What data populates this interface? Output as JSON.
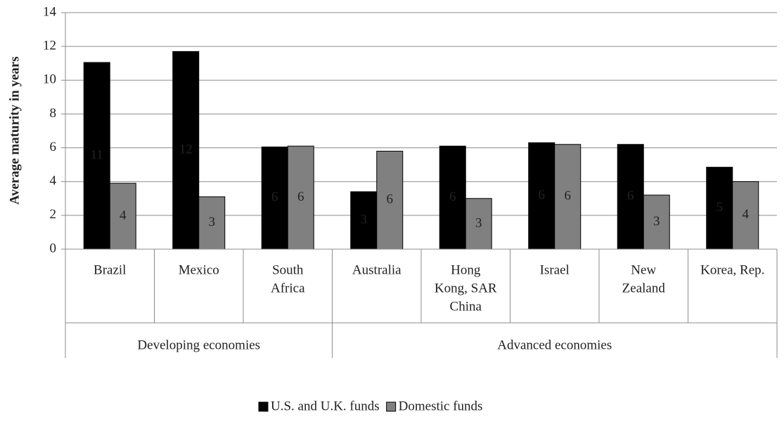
{
  "chart_data": {
    "type": "bar",
    "ylabel": "Average maturity in years",
    "groups": [
      {
        "name": "Developing economies",
        "categories": [
          [
            "Brazil"
          ],
          [
            "Mexico"
          ],
          [
            "South",
            "Africa"
          ]
        ]
      },
      {
        "name": "Advanced economies",
        "categories": [
          [
            "Australia"
          ],
          [
            "Hong",
            "Kong, SAR",
            "China"
          ],
          [
            "Israel"
          ],
          [
            "New",
            "Zealand"
          ],
          [
            "Korea, Rep."
          ]
        ]
      }
    ],
    "series": [
      {
        "name": "U.S. and U.K. funds",
        "color": "#000000",
        "label_color": "#ffffff",
        "values": [
          11.05,
          11.7,
          6.05,
          3.4,
          6.1,
          6.3,
          6.2,
          4.85
        ],
        "value_labels": [
          "11",
          "12",
          "6",
          "3",
          "6",
          "6",
          "6",
          "5"
        ]
      },
      {
        "name": "Domestic funds",
        "color": "#808080",
        "label_color": "#222222",
        "values": [
          3.9,
          3.1,
          6.1,
          5.8,
          3.0,
          6.2,
          3.2,
          4.0
        ],
        "value_labels": [
          "4",
          "3",
          "6",
          "6",
          "3",
          "6",
          "3",
          "4"
        ]
      }
    ],
    "ylim": [
      0,
      14
    ],
    "yticks": [
      0,
      2,
      4,
      6,
      8,
      10,
      12,
      14
    ],
    "grid": true,
    "legend": "bottom"
  }
}
